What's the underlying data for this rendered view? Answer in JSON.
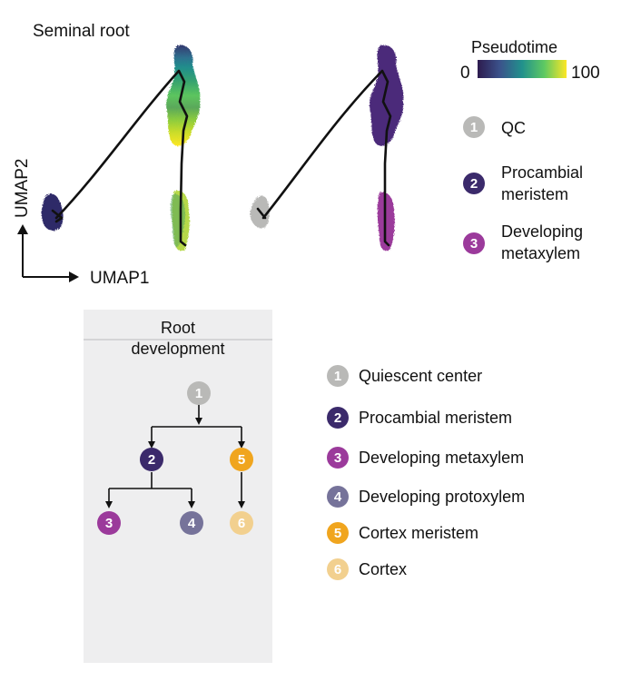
{
  "umap": {
    "title": "Seminal root",
    "xlabel": "UMAP1",
    "ylabel": "UMAP2"
  },
  "colorbar": {
    "title": "Pseudotime",
    "min": "0",
    "max": "100",
    "colors": [
      "#2d1b4e",
      "#3b528b",
      "#21918c",
      "#5ec962",
      "#fde725"
    ]
  },
  "cluster_legend": [
    {
      "num": "1",
      "label_lines": [
        "QC"
      ],
      "color": "#b9b9b7"
    },
    {
      "num": "2",
      "label_lines": [
        "Procambial",
        "meristem"
      ],
      "color": "#3b2a6b"
    },
    {
      "num": "3",
      "label_lines": [
        "Developing",
        "metaxylem"
      ],
      "color": "#9b3a9b"
    }
  ],
  "dev_panel": {
    "title_lines": [
      "Root",
      "development"
    ],
    "nodes": [
      {
        "num": "1",
        "color": "#b9b9b7"
      },
      {
        "num": "2",
        "color": "#3b2a6b"
      },
      {
        "num": "3",
        "color": "#9b3a9b"
      },
      {
        "num": "4",
        "color": "#76739a"
      },
      {
        "num": "5",
        "color": "#f0a51e"
      },
      {
        "num": "6",
        "color": "#f2d08f"
      }
    ]
  },
  "cell_legend": [
    {
      "num": "1",
      "label": "Quiescent center",
      "color": "#b9b9b7"
    },
    {
      "num": "2",
      "label": "Procambial meristem",
      "color": "#3b2a6b"
    },
    {
      "num": "3",
      "label": "Developing metaxylem",
      "color": "#9b3a9b"
    },
    {
      "num": "4",
      "label": "Developing protoxylem",
      "color": "#76739a"
    },
    {
      "num": "5",
      "label": "Cortex meristem",
      "color": "#f0a51e"
    },
    {
      "num": "6",
      "label": "Cortex",
      "color": "#f2d08f"
    }
  ]
}
